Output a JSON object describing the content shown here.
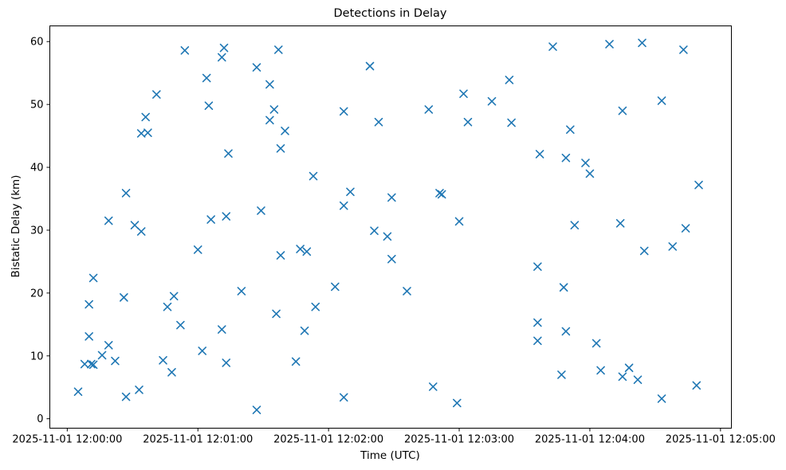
{
  "figure": {
    "title": "Detections in Delay",
    "xlabel": "Time (UTC)",
    "ylabel": "Bistatic Delay (km)",
    "background_color": "#ffffff",
    "marker_color": "#1f77b4",
    "spine_color": "#000000",
    "tick_label_color": "#000000"
  },
  "chart_data": {
    "type": "scatter",
    "marker": "x",
    "title": "Detections in Delay",
    "xlabel": "Time (UTC)",
    "ylabel": "Bistatic Delay (km)",
    "legend": null,
    "grid": false,
    "x_unit": "seconds after 2025-11-01 12:00:00 UTC",
    "y_unit": "km",
    "xlim": [
      -8,
      305
    ],
    "ylim": [
      -1.5,
      62.5
    ],
    "x_ticks": [
      0,
      60,
      120,
      180,
      240,
      300
    ],
    "x_tick_labels": [
      "2025-11-01 12:00:00",
      "2025-11-01 12:01:00",
      "2025-11-01 12:02:00",
      "2025-11-01 12:03:00",
      "2025-11-01 12:04:00",
      "2025-11-01 12:05:00"
    ],
    "y_ticks": [
      0,
      10,
      20,
      30,
      40,
      50,
      60
    ],
    "y_tick_labels": [
      "0",
      "10",
      "20",
      "30",
      "40",
      "50",
      "60"
    ],
    "points": [
      [
        5,
        4.3
      ],
      [
        8,
        8.7
      ],
      [
        10,
        18.2
      ],
      [
        10,
        13.1
      ],
      [
        11,
        8.7
      ],
      [
        12,
        22.4
      ],
      [
        12,
        8.6
      ],
      [
        16,
        10.1
      ],
      [
        19,
        31.5
      ],
      [
        19,
        11.7
      ],
      [
        22,
        9.2
      ],
      [
        26,
        19.3
      ],
      [
        27,
        35.9
      ],
      [
        27,
        3.5
      ],
      [
        31,
        30.8
      ],
      [
        33,
        4.6
      ],
      [
        34,
        45.4
      ],
      [
        34,
        29.8
      ],
      [
        36,
        48.0
      ],
      [
        37,
        45.5
      ],
      [
        41,
        51.6
      ],
      [
        44,
        9.3
      ],
      [
        46,
        17.8
      ],
      [
        48,
        7.4
      ],
      [
        49,
        19.5
      ],
      [
        52,
        14.9
      ],
      [
        54,
        58.6
      ],
      [
        60,
        26.9
      ],
      [
        62,
        10.8
      ],
      [
        64,
        54.2
      ],
      [
        65,
        49.8
      ],
      [
        66,
        31.7
      ],
      [
        71,
        57.5
      ],
      [
        71,
        14.2
      ],
      [
        72,
        59.0
      ],
      [
        73,
        32.2
      ],
      [
        73,
        8.9
      ],
      [
        74,
        42.2
      ],
      [
        80,
        20.3
      ],
      [
        87,
        55.9
      ],
      [
        87,
        1.4
      ],
      [
        89,
        33.1
      ],
      [
        93,
        53.2
      ],
      [
        93,
        47.5
      ],
      [
        95,
        49.2
      ],
      [
        96,
        16.7
      ],
      [
        97,
        58.7
      ],
      [
        98,
        43.0
      ],
      [
        98,
        26.0
      ],
      [
        100,
        45.8
      ],
      [
        105,
        9.1
      ],
      [
        107,
        27.0
      ],
      [
        109,
        14.0
      ],
      [
        110,
        26.6
      ],
      [
        113,
        38.6
      ],
      [
        114,
        17.8
      ],
      [
        123,
        21.0
      ],
      [
        127,
        48.9
      ],
      [
        127,
        33.9
      ],
      [
        127,
        3.4
      ],
      [
        130,
        36.1
      ],
      [
        139,
        56.1
      ],
      [
        141,
        29.9
      ],
      [
        143,
        47.2
      ],
      [
        147,
        29.0
      ],
      [
        149,
        35.2
      ],
      [
        149,
        25.4
      ],
      [
        156,
        20.3
      ],
      [
        166,
        49.2
      ],
      [
        168,
        5.1
      ],
      [
        171,
        35.9
      ],
      [
        172,
        35.7
      ],
      [
        179,
        2.5
      ],
      [
        180,
        31.4
      ],
      [
        182,
        51.7
      ],
      [
        184,
        47.2
      ],
      [
        195,
        50.5
      ],
      [
        203,
        53.9
      ],
      [
        204,
        47.1
      ],
      [
        216,
        24.2
      ],
      [
        216,
        15.3
      ],
      [
        216,
        12.4
      ],
      [
        217,
        42.1
      ],
      [
        223,
        59.2
      ],
      [
        227,
        7.0
      ],
      [
        228,
        20.9
      ],
      [
        229,
        41.5
      ],
      [
        229,
        13.9
      ],
      [
        231,
        46.0
      ],
      [
        233,
        30.8
      ],
      [
        238,
        40.7
      ],
      [
        240,
        39.0
      ],
      [
        243,
        12.0
      ],
      [
        245,
        7.7
      ],
      [
        249,
        59.6
      ],
      [
        254,
        31.1
      ],
      [
        255,
        49.0
      ],
      [
        255,
        6.7
      ],
      [
        258,
        8.1
      ],
      [
        262,
        6.2
      ],
      [
        264,
        59.8
      ],
      [
        265,
        26.7
      ],
      [
        273,
        50.6
      ],
      [
        273,
        3.2
      ],
      [
        278,
        27.4
      ],
      [
        283,
        58.7
      ],
      [
        284,
        30.3
      ],
      [
        289,
        5.3
      ],
      [
        290,
        37.2
      ]
    ]
  }
}
